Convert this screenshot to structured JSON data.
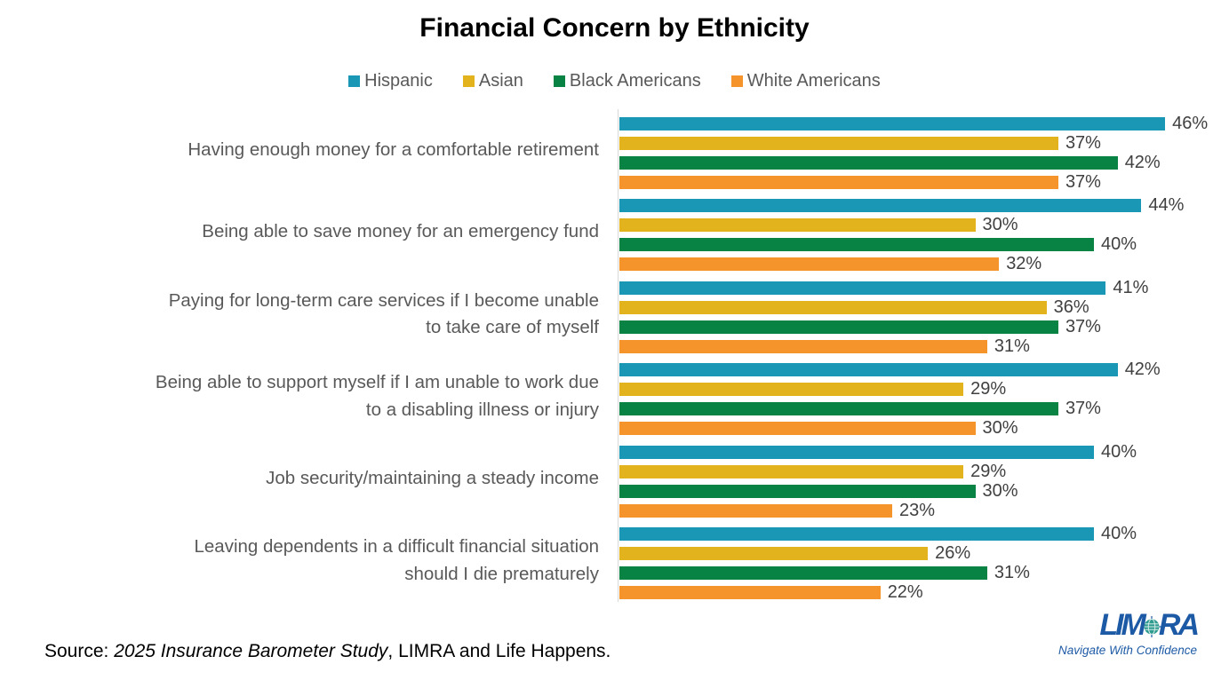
{
  "title": "Financial Concern by Ethnicity",
  "chart_data": {
    "type": "bar",
    "orientation": "horizontal",
    "value_suffix": "%",
    "xlim": [
      0,
      50
    ],
    "grid": false,
    "legend_position": "top",
    "categories": [
      "Having enough money for a comfortable retirement",
      "Being able to save money for an emergency fund",
      "Paying for long-term care services if I become unable to take care of myself",
      "Being able to support myself if I am unable to work due to a disabling illness or injury",
      "Job security/maintaining a steady income",
      "Leaving dependents in a difficult financial situation should I die prematurely"
    ],
    "category_lines": [
      [
        "Having enough money for a comfortable retirement"
      ],
      [
        "Being able to save money for an emergency fund"
      ],
      [
        "Paying for long-term care services if I become unable",
        "to take care of myself"
      ],
      [
        "Being able to support myself if I am unable to work due",
        "to a disabling illness or injury"
      ],
      [
        "Job security/maintaining a steady income"
      ],
      [
        "Leaving dependents in a difficult financial situation",
        "should I die prematurely"
      ]
    ],
    "series": [
      {
        "name": "Hispanic",
        "color": "#1997B5",
        "values": [
          46,
          44,
          41,
          42,
          40,
          40
        ]
      },
      {
        "name": "Asian",
        "color": "#E2B31C",
        "values": [
          37,
          30,
          36,
          29,
          29,
          26
        ]
      },
      {
        "name": "Black Americans",
        "color": "#088343",
        "values": [
          42,
          40,
          37,
          37,
          30,
          31
        ]
      },
      {
        "name": "White Americans",
        "color": "#F4942A",
        "values": [
          37,
          32,
          31,
          30,
          23,
          22
        ]
      }
    ]
  },
  "source": {
    "prefix": "Source: ",
    "study_italic": "2025 Insurance Barometer Study",
    "suffix": ", LIMRA and Life Happens."
  },
  "logo": {
    "text": "LIMRA",
    "tagline": "Navigate With Confidence",
    "color": "#1D5AA5",
    "globe_color": "#2E9B8F"
  },
  "icons": {
    "logo_globe": "globe-icon"
  }
}
